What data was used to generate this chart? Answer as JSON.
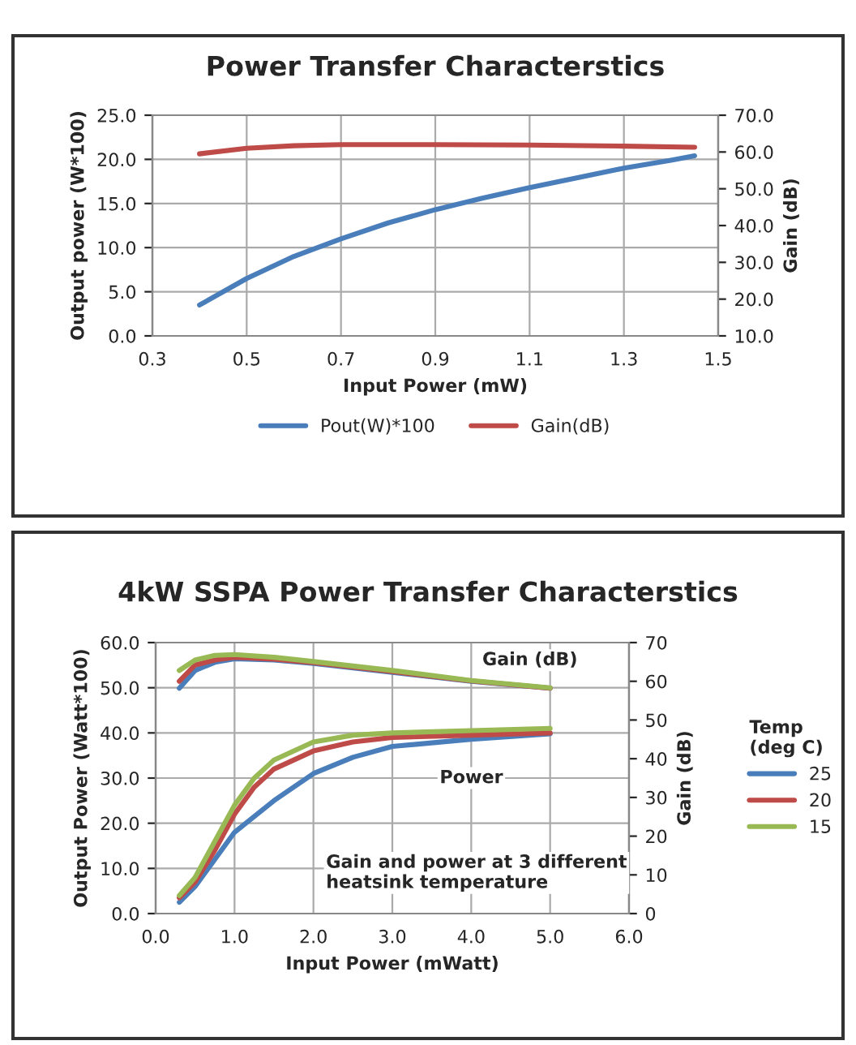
{
  "chart_data": [
    {
      "type": "line",
      "title": "Power Transfer Characterstics",
      "xlabel": "Input Power (mW)",
      "ylabel": "Output power (W*100)",
      "y2label": "Gain (dB)",
      "xlim": [
        0.3,
        1.5
      ],
      "xticks": [
        {
          "value": 0.3,
          "label": "0.3"
        },
        {
          "value": 0.5,
          "label": "0.5"
        },
        {
          "value": 0.7,
          "label": "0.7"
        },
        {
          "value": 0.9,
          "label": "0.9"
        },
        {
          "value": 1.1,
          "label": "1.1"
        },
        {
          "value": 1.3,
          "label": "1.3"
        },
        {
          "value": 1.5,
          "label": "1.5"
        }
      ],
      "ylim": [
        0,
        25
      ],
      "yticks": [
        {
          "value": 0,
          "label": "0.0"
        },
        {
          "value": 5,
          "label": "5.0"
        },
        {
          "value": 10,
          "label": "10.0"
        },
        {
          "value": 15,
          "label": "15.0"
        },
        {
          "value": 20,
          "label": "20.0"
        },
        {
          "value": 25,
          "label": "25.0"
        }
      ],
      "y2lim": [
        10,
        70
      ],
      "y2ticks": [
        {
          "value": 10,
          "label": "10.0"
        },
        {
          "value": 20,
          "label": "20.0"
        },
        {
          "value": 30,
          "label": "30.0"
        },
        {
          "value": 40,
          "label": "40.0"
        },
        {
          "value": 50,
          "label": "50.0"
        },
        {
          "value": 60,
          "label": "60.0"
        },
        {
          "value": 70,
          "label": "70.0"
        }
      ],
      "grid": true,
      "legend": "bottom",
      "series": [
        {
          "name": "Pout(W)*100",
          "color": "#4a7ebb",
          "x": [
            0.4,
            0.5,
            0.6,
            0.7,
            0.8,
            0.9,
            1.0,
            1.1,
            1.2,
            1.3,
            1.4,
            1.45
          ],
          "values": [
            3.5,
            6.5,
            9.0,
            11.0,
            12.8,
            14.3,
            15.6,
            16.8,
            17.9,
            19.0,
            19.9,
            20.4
          ]
        },
        {
          "name": "Gain(dB)",
          "color": "#be4b48",
          "axis": "y2",
          "x": [
            0.4,
            0.5,
            0.6,
            0.7,
            0.9,
            1.1,
            1.3,
            1.45
          ],
          "values": [
            59.5,
            61.0,
            61.7,
            62.0,
            62.0,
            61.9,
            61.6,
            61.3
          ]
        }
      ]
    },
    {
      "type": "line",
      "title": "4kW SSPA Power Transfer Characterstics",
      "xlabel": "Input Power (mWatt)",
      "ylabel": "Output Power (Watt*100)",
      "y2label": "Gain (dB)",
      "legend_title": "Temp\n(deg C)",
      "xlim": [
        0,
        6
      ],
      "xticks": [
        {
          "value": 0,
          "label": "0.0"
        },
        {
          "value": 1,
          "label": "1.0"
        },
        {
          "value": 2,
          "label": "2.0"
        },
        {
          "value": 3,
          "label": "3.0"
        },
        {
          "value": 4,
          "label": "4.0"
        },
        {
          "value": 5,
          "label": "5.0"
        },
        {
          "value": 6,
          "label": "6.0"
        }
      ],
      "ylim": [
        0,
        60
      ],
      "yticks": [
        {
          "value": 0,
          "label": "0.0"
        },
        {
          "value": 10,
          "label": "10.0"
        },
        {
          "value": 20,
          "label": "20.0"
        },
        {
          "value": 30,
          "label": "30.0"
        },
        {
          "value": 40,
          "label": "40.0"
        },
        {
          "value": 50,
          "label": "50.0"
        },
        {
          "value": 60,
          "label": "60.0"
        }
      ],
      "y2lim": [
        0,
        70
      ],
      "y2ticks": [
        0,
        10,
        20,
        30,
        40,
        50,
        60,
        70
      ],
      "grid": true,
      "legend": "right",
      "annotations": [
        "Gain (dB)",
        "Power",
        "Gain and power at 3 different heatsink temperature"
      ],
      "series": [
        {
          "name": "25",
          "color": "#4a7ebb",
          "x": [
            0.3,
            0.5,
            0.75,
            1.0,
            1.5,
            2.0,
            2.5,
            3.0,
            4.0,
            5.0
          ],
          "values": [
            2.5,
            6.0,
            12.0,
            18.0,
            25.0,
            31.0,
            34.6,
            37.0,
            38.6,
            39.8
          ]
        },
        {
          "name": "20",
          "color": "#be4b48",
          "x": [
            0.3,
            0.5,
            0.75,
            1.0,
            1.25,
            1.5,
            2.0,
            2.5,
            3.0,
            4.0,
            5.0
          ],
          "values": [
            3.5,
            7.0,
            14.0,
            22.0,
            28.0,
            32.0,
            36.0,
            38.0,
            39.0,
            39.5,
            40.0
          ]
        },
        {
          "name": "15",
          "color": "#98b954",
          "x": [
            0.3,
            0.5,
            0.75,
            1.0,
            1.25,
            1.5,
            2.0,
            2.5,
            3.0,
            4.0,
            5.0
          ],
          "values": [
            4.0,
            8.0,
            16.0,
            24.0,
            30.0,
            34.0,
            38.0,
            39.5,
            40.0,
            40.5,
            41.0
          ]
        },
        {
          "color": "#4a7ebb",
          "axis": "y2",
          "x": [
            0.3,
            0.5,
            0.75,
            1.0,
            1.5,
            2.0,
            3.0,
            4.0,
            5.0
          ],
          "values": [
            58.2,
            62.8,
            64.9,
            65.8,
            65.5,
            64.6,
            62.3,
            60.0,
            58.2
          ]
        },
        {
          "color": "#be4b48",
          "axis": "y2",
          "x": [
            0.3,
            0.5,
            0.75,
            1.0,
            1.5,
            2.0,
            3.0,
            4.0,
            5.0
          ],
          "values": [
            60.0,
            64.2,
            65.5,
            66.2,
            65.7,
            64.8,
            62.5,
            60.1,
            58.2
          ]
        },
        {
          "color": "#98b954",
          "axis": "y2",
          "x": [
            0.3,
            0.5,
            0.75,
            1.0,
            1.5,
            2.0,
            3.0,
            4.0,
            5.0
          ],
          "values": [
            62.8,
            65.5,
            66.7,
            66.9,
            66.2,
            65.1,
            62.8,
            60.2,
            58.3
          ]
        }
      ]
    }
  ]
}
